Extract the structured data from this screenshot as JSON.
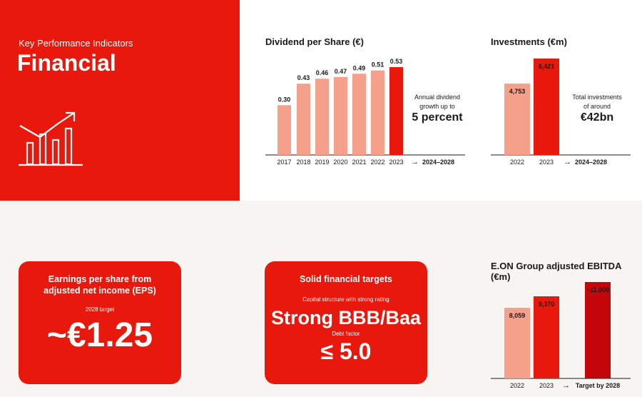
{
  "hero": {
    "kicker": "Key Performance Indicators",
    "title": "Financial",
    "icon": "chart-growth-icon"
  },
  "chart_data": [
    {
      "type": "bar",
      "title": "Dividend per Share (€)",
      "categories": [
        "2017",
        "2018",
        "2019",
        "2020",
        "2021",
        "2022",
        "2023"
      ],
      "values": [
        0.3,
        0.43,
        0.46,
        0.47,
        0.49,
        0.51,
        0.53
      ],
      "value_labels": [
        "0.30",
        "0.43",
        "0.46",
        "0.47",
        "0.49",
        "0.51",
        "0.53"
      ],
      "highlight": "2023",
      "forecast_label": "2024–2028",
      "note_line1": "Annual dividend",
      "note_line2": "growth up to",
      "note_value": "5 percent"
    },
    {
      "type": "bar",
      "title": "Investments (€m)",
      "categories": [
        "2022",
        "2023"
      ],
      "values": [
        4753,
        6421
      ],
      "value_labels": [
        "4,753",
        "6,421"
      ],
      "highlight": "2023",
      "forecast_label": "2024–2028",
      "note_line1": "Total investments",
      "note_line2": "of around",
      "note_value": "€42bn"
    },
    {
      "type": "bar",
      "title": "E.ON Group adjusted EBITDA (€m)",
      "categories": [
        "2022",
        "2023",
        "Target by 2028"
      ],
      "values": [
        8059,
        9370,
        11000
      ],
      "value_labels": [
        "8,059",
        "9,370",
        "~11,000"
      ],
      "highlight": "2023"
    }
  ],
  "eps": {
    "title_line1": "Earnings per share from",
    "title_line2": "adjusted net income (EPS)",
    "sub": "2028 target",
    "value": "~€1.25"
  },
  "targets": {
    "title": "Solid financial targets",
    "sub1": "Capital structure with strong rating",
    "value1": "Strong BBB/Baa",
    "sub2": "Debt factor",
    "value2": "≤ 5.0"
  },
  "colors": {
    "brand_red": "#e8180c",
    "light_bar": "#f4a08a",
    "dark_bar": "#c4070b",
    "background": "#f8f4f1"
  }
}
